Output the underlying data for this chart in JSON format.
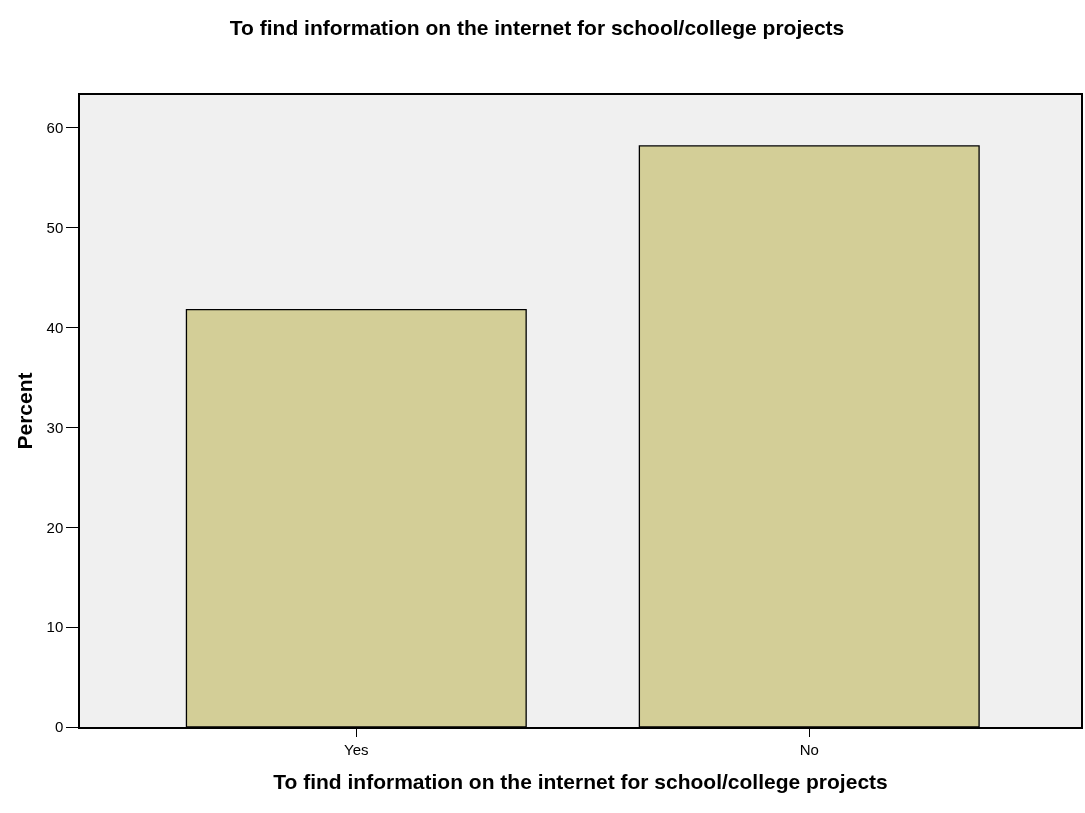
{
  "chart_data": {
    "type": "bar",
    "title": "To find information on the internet for school/college projects",
    "xlabel": "To find information on the internet for school/college projects",
    "ylabel": "Percent",
    "categories": [
      "Yes",
      "No"
    ],
    "values": [
      41.8,
      58.2
    ],
    "color": "#d3ce97",
    "ylim": [
      0,
      63.3
    ],
    "yticks": [
      0,
      10,
      20,
      30,
      40,
      50,
      60
    ],
    "grid": false,
    "legend": false
  }
}
